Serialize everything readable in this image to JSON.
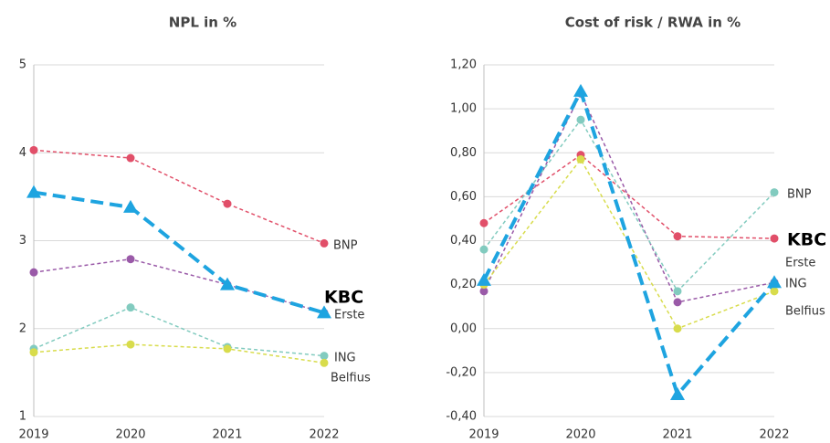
{
  "chart_data": [
    {
      "type": "line",
      "title": "NPL in %",
      "categories": [
        "2019",
        "2020",
        "2021",
        "2022"
      ],
      "ylim": [
        1,
        5
      ],
      "yticks": [
        1,
        2,
        3,
        4,
        5
      ],
      "grid": true,
      "series": [
        {
          "name": "BNP",
          "color": "#e14f69",
          "marker": "circle",
          "line_width": 1.5,
          "values": [
            4.03,
            3.94,
            3.42,
            2.97
          ]
        },
        {
          "name": "KBC",
          "color": "#1ea4e0",
          "marker": "triangle",
          "line_width": 4,
          "values": [
            3.55,
            3.38,
            2.5,
            2.18
          ]
        },
        {
          "name": "Erste",
          "color": "#9a5aa8",
          "marker": "circle",
          "line_width": 1.5,
          "values": [
            2.64,
            2.79,
            2.5,
            2.18
          ]
        },
        {
          "name": "ING",
          "color": "#82cbbf",
          "marker": "circle",
          "line_width": 1.5,
          "values": [
            1.77,
            2.24,
            1.79,
            1.69
          ]
        },
        {
          "name": "Belfius",
          "color": "#d8dc4c",
          "marker": "circle",
          "line_width": 1.5,
          "values": [
            1.73,
            1.82,
            1.77,
            1.61
          ]
        }
      ]
    },
    {
      "type": "line",
      "title": "Cost of risk / RWA in %",
      "categories": [
        "2019",
        "2020",
        "2021",
        "2022"
      ],
      "ylim": [
        -0.4,
        1.2
      ],
      "yticks": [
        {
          "value": -0.4,
          "label": "-0,40"
        },
        {
          "value": -0.2,
          "label": "-0,20"
        },
        {
          "value": 0,
          "label": "0,00"
        },
        {
          "value": 0.2,
          "label": "0,20"
        },
        {
          "value": 0.4,
          "label": "0,40"
        },
        {
          "value": 0.6,
          "label": "0,60"
        },
        {
          "value": 0.8,
          "label": "0,80"
        },
        {
          "value": 1,
          "label": "1,00"
        },
        {
          "value": 1.2,
          "label": "1,20"
        }
      ],
      "grid": true,
      "series": [
        {
          "name": "BNP",
          "color": "#e14f69",
          "marker": "circle",
          "line_width": 1.5,
          "values": [
            0.48,
            0.79,
            0.42,
            0.41
          ]
        },
        {
          "name": "KBC",
          "color": "#1ea4e0",
          "marker": "triangle",
          "line_width": 4,
          "values": [
            0.22,
            1.08,
            -0.3,
            0.21
          ]
        },
        {
          "name": "Erste",
          "color": "#9a5aa8",
          "marker": "circle",
          "line_width": 1.5,
          "values": [
            0.17,
            1.07,
            0.12,
            0.21
          ]
        },
        {
          "name": "ING",
          "color": "#82cbbf",
          "marker": "circle",
          "line_width": 1.5,
          "values": [
            0.36,
            0.95,
            0.17,
            0.62
          ]
        },
        {
          "name": "Belfius",
          "color": "#d8dc4c",
          "marker": "circle",
          "line_width": 1.5,
          "values": [
            0.2,
            0.77,
            0,
            0.17
          ]
        }
      ]
    }
  ]
}
